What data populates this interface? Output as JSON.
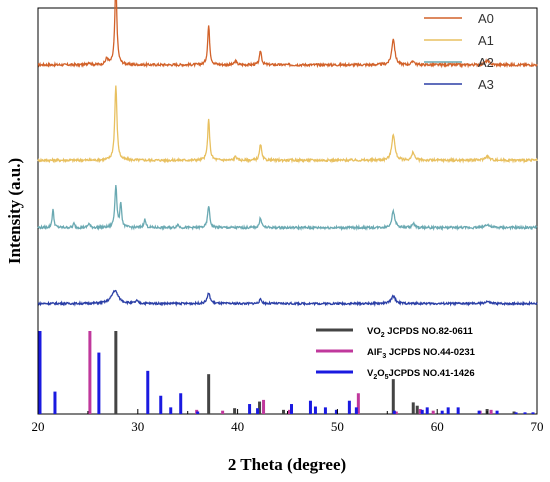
{
  "chart_data": {
    "type": "line",
    "title": "",
    "xlabel": "2 Theta (degree)",
    "ylabel": "Intensity (a.u.)",
    "xlim": [
      20,
      70
    ],
    "x_ticks": [
      20,
      30,
      40,
      50,
      60,
      70
    ],
    "legend_position": "top-right",
    "grid": false,
    "series": [
      {
        "name": "A0",
        "color": "#d2622a",
        "baseline": 0.86,
        "noise": 0.006,
        "peaks": [
          {
            "x": 25.1,
            "h": 0.006,
            "w": 0.15
          },
          {
            "x": 26.9,
            "h": 0.015,
            "w": 0.15
          },
          {
            "x": 27.8,
            "h": 0.205,
            "w": 0.12
          },
          {
            "x": 37.1,
            "h": 0.097,
            "w": 0.12
          },
          {
            "x": 39.8,
            "h": 0.01,
            "w": 0.12
          },
          {
            "x": 42.3,
            "h": 0.035,
            "w": 0.12
          },
          {
            "x": 55.6,
            "h": 0.065,
            "w": 0.18
          },
          {
            "x": 57.6,
            "h": 0.01,
            "w": 0.15
          },
          {
            "x": 65.0,
            "h": 0.01,
            "w": 0.25
          }
        ]
      },
      {
        "name": "A1",
        "color": "#e8c060",
        "baseline": 0.625,
        "noise": 0.006,
        "peaks": [
          {
            "x": 27.8,
            "h": 0.185,
            "w": 0.13
          },
          {
            "x": 37.1,
            "h": 0.1,
            "w": 0.12
          },
          {
            "x": 39.8,
            "h": 0.01,
            "w": 0.12
          },
          {
            "x": 42.3,
            "h": 0.04,
            "w": 0.12
          },
          {
            "x": 55.6,
            "h": 0.065,
            "w": 0.18
          },
          {
            "x": 57.6,
            "h": 0.02,
            "w": 0.15
          },
          {
            "x": 65.0,
            "h": 0.01,
            "w": 0.25
          }
        ]
      },
      {
        "name": "A2",
        "color": "#6aa9b2",
        "baseline": 0.459,
        "noise": 0.006,
        "peaks": [
          {
            "x": 21.5,
            "h": 0.045,
            "w": 0.1
          },
          {
            "x": 23.6,
            "h": 0.01,
            "w": 0.1
          },
          {
            "x": 25.1,
            "h": 0.01,
            "w": 0.12
          },
          {
            "x": 27.8,
            "h": 0.105,
            "w": 0.12
          },
          {
            "x": 28.3,
            "h": 0.06,
            "w": 0.1
          },
          {
            "x": 30.7,
            "h": 0.02,
            "w": 0.12
          },
          {
            "x": 34.0,
            "h": 0.008,
            "w": 0.12
          },
          {
            "x": 37.1,
            "h": 0.055,
            "w": 0.12
          },
          {
            "x": 42.3,
            "h": 0.025,
            "w": 0.12
          },
          {
            "x": 55.6,
            "h": 0.04,
            "w": 0.18
          },
          {
            "x": 57.6,
            "h": 0.01,
            "w": 0.15
          },
          {
            "x": 65.0,
            "h": 0.008,
            "w": 0.25
          }
        ]
      },
      {
        "name": "A3",
        "color": "#2b3fa6",
        "baseline": 0.272,
        "noise": 0.005,
        "peaks": [
          {
            "x": 27.7,
            "h": 0.032,
            "w": 0.4
          },
          {
            "x": 29.9,
            "h": 0.006,
            "w": 0.15
          },
          {
            "x": 37.1,
            "h": 0.025,
            "w": 0.18
          },
          {
            "x": 42.3,
            "h": 0.01,
            "w": 0.15
          },
          {
            "x": 55.6,
            "h": 0.018,
            "w": 0.25
          },
          {
            "x": 65.0,
            "h": 0.005,
            "w": 0.25
          }
        ]
      }
    ],
    "reference_patterns": [
      {
        "label_main": "VO",
        "label_sub": "2",
        "label_rest": " JCPDS  NO.82-0611",
        "color": "#444444",
        "peaks": [
          {
            "x": 27.8,
            "h": 1.0
          },
          {
            "x": 37.1,
            "h": 0.48
          },
          {
            "x": 39.7,
            "h": 0.07
          },
          {
            "x": 42.2,
            "h": 0.15
          },
          {
            "x": 44.6,
            "h": 0.05
          },
          {
            "x": 55.6,
            "h": 0.42
          },
          {
            "x": 57.6,
            "h": 0.14
          },
          {
            "x": 58.0,
            "h": 0.1
          },
          {
            "x": 65.0,
            "h": 0.06
          },
          {
            "x": 67.7,
            "h": 0.03
          }
        ]
      },
      {
        "label_main": "AlF",
        "label_sub": "3",
        "label_rest": " JCPDS  NO.44-0231",
        "color": "#c0389c",
        "peaks": [
          {
            "x": 25.2,
            "h": 1.0
          },
          {
            "x": 35.9,
            "h": 0.05
          },
          {
            "x": 38.5,
            "h": 0.04
          },
          {
            "x": 42.6,
            "h": 0.17
          },
          {
            "x": 45.2,
            "h": 0.05
          },
          {
            "x": 52.1,
            "h": 0.25
          },
          {
            "x": 55.9,
            "h": 0.03
          },
          {
            "x": 58.3,
            "h": 0.06
          },
          {
            "x": 59.6,
            "h": 0.04
          },
          {
            "x": 64.3,
            "h": 0.04
          },
          {
            "x": 65.4,
            "h": 0.05
          }
        ]
      },
      {
        "label_main": "V",
        "label_sub": "2",
        "label_mid": "O",
        "label_sub2": "5",
        "label_rest": "JCPDS NO.41-1426",
        "color": "#1a1ae0",
        "peaks": [
          {
            "x": 20.2,
            "h": 1.0
          },
          {
            "x": 21.7,
            "h": 0.27
          },
          {
            "x": 26.1,
            "h": 0.74
          },
          {
            "x": 31.0,
            "h": 0.52
          },
          {
            "x": 32.3,
            "h": 0.22
          },
          {
            "x": 33.3,
            "h": 0.08
          },
          {
            "x": 34.3,
            "h": 0.25
          },
          {
            "x": 36.0,
            "h": 0.03
          },
          {
            "x": 41.2,
            "h": 0.12
          },
          {
            "x": 42.0,
            "h": 0.07
          },
          {
            "x": 45.4,
            "h": 0.12
          },
          {
            "x": 47.3,
            "h": 0.16
          },
          {
            "x": 47.8,
            "h": 0.09
          },
          {
            "x": 48.8,
            "h": 0.08
          },
          {
            "x": 49.9,
            "h": 0.05
          },
          {
            "x": 51.2,
            "h": 0.16
          },
          {
            "x": 51.9,
            "h": 0.08
          },
          {
            "x": 55.7,
            "h": 0.04
          },
          {
            "x": 58.5,
            "h": 0.05
          },
          {
            "x": 59.0,
            "h": 0.08
          },
          {
            "x": 60.5,
            "h": 0.04
          },
          {
            "x": 61.1,
            "h": 0.08
          },
          {
            "x": 62.1,
            "h": 0.08
          },
          {
            "x": 64.2,
            "h": 0.04
          },
          {
            "x": 66.0,
            "h": 0.04
          },
          {
            "x": 67.9,
            "h": 0.02
          },
          {
            "x": 68.8,
            "h": 0.02
          },
          {
            "x": 69.6,
            "h": 0.02
          }
        ]
      }
    ]
  }
}
